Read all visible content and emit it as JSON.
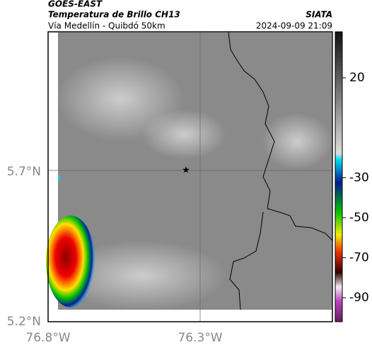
{
  "header": {
    "satellite": "GOES-EAST",
    "product": "Temperatura de Brillo CH13",
    "region": "Vía Medellín - Quibdó 50km",
    "source": "SIATA",
    "timestamp": "2024-09-09 21:09"
  },
  "map": {
    "lat_labels": [
      "5.7°N",
      "5.2°N"
    ],
    "lon_labels": [
      "76.8°W",
      "76.3°W"
    ]
  },
  "colorbar": {
    "ticks": [
      20,
      -30,
      -50,
      -70,
      -90
    ],
    "limits": [
      -102,
      43
    ]
  }
}
